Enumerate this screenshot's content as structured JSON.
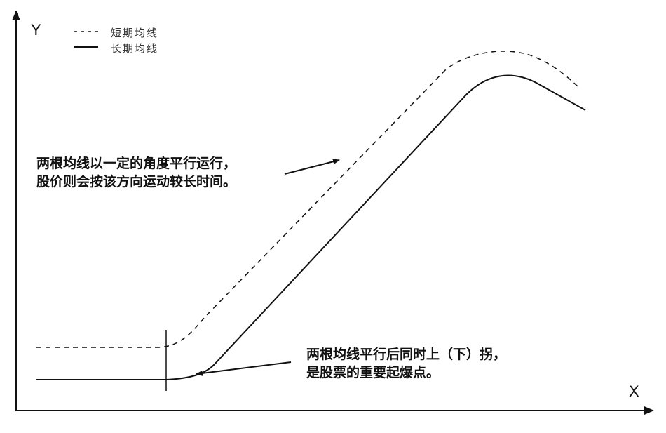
{
  "axes": {
    "y_label": "Y",
    "x_label": "X"
  },
  "legend": [
    {
      "label": "短期均线",
      "style": "dashed"
    },
    {
      "label": "长期均线",
      "style": "solid"
    }
  ],
  "annotations": {
    "parallel_run": [
      "两根均线以一定的角度平行运行，",
      "股价则会按该方向运动较长时间。"
    ],
    "breakout": [
      "两根均线平行后同时上（下）拐，",
      "是股票的重要起爆点。"
    ]
  },
  "colors": {
    "line": "#111111",
    "background": "#ffffff"
  }
}
